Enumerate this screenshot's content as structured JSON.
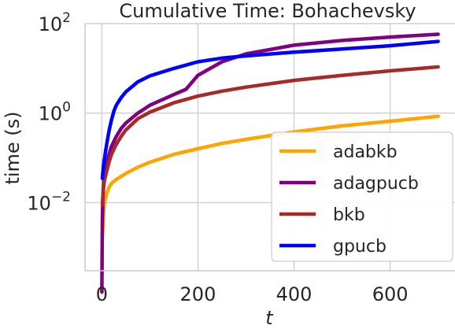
{
  "chart_data": {
    "type": "line",
    "title": "Cumulative Time: Bohachevsky",
    "xlabel": "t",
    "ylabel": "time (s)",
    "y_scale": "log",
    "xlim": [
      -35,
      735
    ],
    "ylim": [
      0.0003,
      100
    ],
    "x_ticks": [
      0,
      200,
      400,
      600
    ],
    "x_tick_labels": [
      "0",
      "200",
      "400",
      "600"
    ],
    "y_ticks": [
      0.01,
      1,
      100
    ],
    "y_tick_labels": [
      {
        "base": "10",
        "exp": "−2"
      },
      {
        "base": "10",
        "exp": "0"
      },
      {
        "base": "10",
        "exp": "2"
      }
    ],
    "grid": true,
    "legend_position": "lower-right",
    "series": [
      {
        "name": "adabkb",
        "color": "#ffa500",
        "x": [
          1,
          3,
          5,
          10,
          15,
          20,
          30,
          50,
          75,
          100,
          150,
          200,
          250,
          300,
          400,
          500,
          600,
          700
        ],
        "y": [
          0.0017,
          0.0045,
          0.009,
          0.016,
          0.022,
          0.027,
          0.033,
          0.045,
          0.062,
          0.08,
          0.12,
          0.16,
          0.21,
          0.26,
          0.38,
          0.52,
          0.66,
          0.85
        ]
      },
      {
        "name": "adagpucb",
        "color": "#800080",
        "x": [
          0,
          1,
          2,
          3,
          5,
          8,
          10,
          15,
          20,
          30,
          40,
          50,
          75,
          100,
          150,
          175,
          200,
          250,
          300,
          400,
          500,
          600,
          700
        ],
        "y": [
          0.0001,
          0.004,
          0.012,
          0.02,
          0.04,
          0.06,
          0.075,
          0.12,
          0.18,
          0.3,
          0.45,
          0.6,
          1.0,
          1.5,
          2.6,
          3.4,
          7,
          14,
          21,
          33,
          42,
          50,
          58
        ]
      },
      {
        "name": "bkb",
        "color": "#a52a2a",
        "x": [
          1,
          3,
          5,
          10,
          15,
          20,
          30,
          40,
          50,
          75,
          100,
          150,
          200,
          250,
          300,
          400,
          500,
          600,
          700
        ],
        "y": [
          0.009,
          0.018,
          0.03,
          0.05,
          0.08,
          0.12,
          0.2,
          0.3,
          0.42,
          0.75,
          1.05,
          1.7,
          2.4,
          3.1,
          3.8,
          5.4,
          7.0,
          8.8,
          10.8
        ]
      },
      {
        "name": "gpucb",
        "color": "#0000ff",
        "x": [
          1,
          3,
          5,
          10,
          15,
          20,
          25,
          30,
          40,
          50,
          75,
          100,
          150,
          200,
          250,
          300,
          400,
          500,
          600,
          700
        ],
        "y": [
          0.035,
          0.06,
          0.09,
          0.2,
          0.4,
          0.7,
          1.1,
          1.5,
          2.2,
          3.0,
          5.0,
          6.8,
          10,
          14,
          17,
          19,
          23,
          27,
          32,
          40
        ]
      }
    ]
  }
}
